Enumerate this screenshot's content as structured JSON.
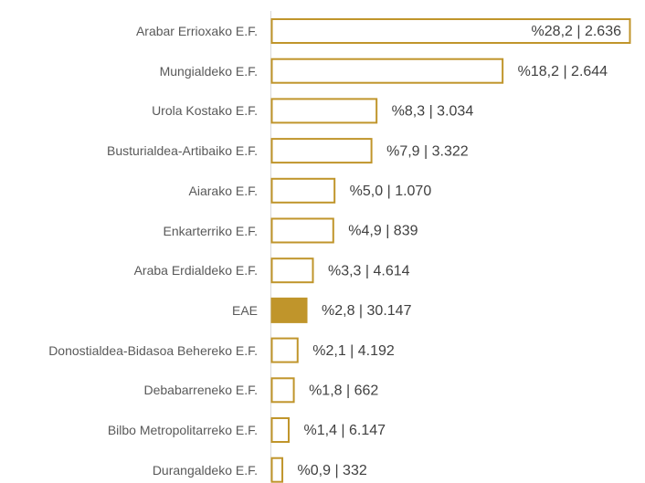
{
  "chart_data": {
    "type": "hbar",
    "categories": [
      "Arabar Errioxako E.F.",
      "Mungialdeko E.F.",
      "Urola Kostako E.F.",
      "Busturialdea-Artibaiko E.F.",
      "Aiarako E.F.",
      "Enkarterriko E.F.",
      "Araba Erdialdeko E.F.",
      "EAE",
      "Donostialdea-Bidasoa Behereko E.F.",
      "Debabarreneko E.F.",
      "Bilbo Metropolitarreko E.F.",
      "Durangaldeko E.F."
    ],
    "values": [
      28.2,
      18.2,
      8.3,
      7.9,
      5.0,
      4.9,
      3.3,
      2.8,
      2.1,
      1.8,
      1.4,
      0.9
    ],
    "value_labels": [
      "%28,2 | 2.636",
      "%18,2 | 2.644",
      "%8,3 | 3.034",
      "%7,9 | 3.322",
      "%5,0 | 1.070",
      "%4,9 | 839",
      "%3,3 | 4.614",
      "%2,8 | 30.147",
      "%2,1 | 4.192",
      "%1,8 | 662",
      "%1,4 | 6.147",
      "%0,9 | 332"
    ],
    "color": "#c0952b",
    "fills": [
      "#ffffff",
      "#ffffff",
      "#ffffff",
      "#ffffff",
      "#ffffff",
      "#ffffff",
      "#ffffff",
      "#c0952b",
      "#ffffff",
      "#ffffff",
      "#ffffff",
      "#ffffff"
    ]
  }
}
